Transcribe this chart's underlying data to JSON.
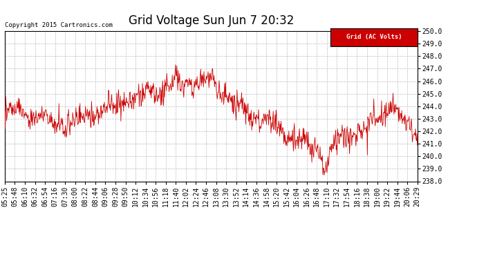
{
  "title": "Grid Voltage Sun Jun 7 20:32",
  "copyright": "Copyright 2015 Cartronics.com",
  "legend_label": "Grid (AC Volts)",
  "legend_bg": "#cc0000",
  "legend_text_color": "#ffffff",
  "line_color": "#cc0000",
  "ylim": [
    238.0,
    250.0
  ],
  "ytick_min": 238.0,
  "ytick_max": 250.0,
  "ytick_step": 1.0,
  "bg_color": "#ffffff",
  "plot_bg_color": "#ffffff",
  "grid_color": "#bbbbbb",
  "title_fontsize": 12,
  "tick_fontsize": 7,
  "x_labels": [
    "05:25",
    "05:48",
    "06:10",
    "06:32",
    "06:54",
    "07:16",
    "07:30",
    "08:00",
    "08:22",
    "08:44",
    "09:06",
    "09:28",
    "09:50",
    "10:12",
    "10:34",
    "10:56",
    "11:18",
    "11:40",
    "12:02",
    "12:24",
    "12:46",
    "13:08",
    "13:30",
    "13:52",
    "14:14",
    "14:36",
    "14:58",
    "15:20",
    "15:42",
    "16:04",
    "16:26",
    "16:48",
    "17:10",
    "17:32",
    "17:54",
    "18:16",
    "18:38",
    "19:00",
    "19:22",
    "19:44",
    "20:06",
    "20:29"
  ]
}
